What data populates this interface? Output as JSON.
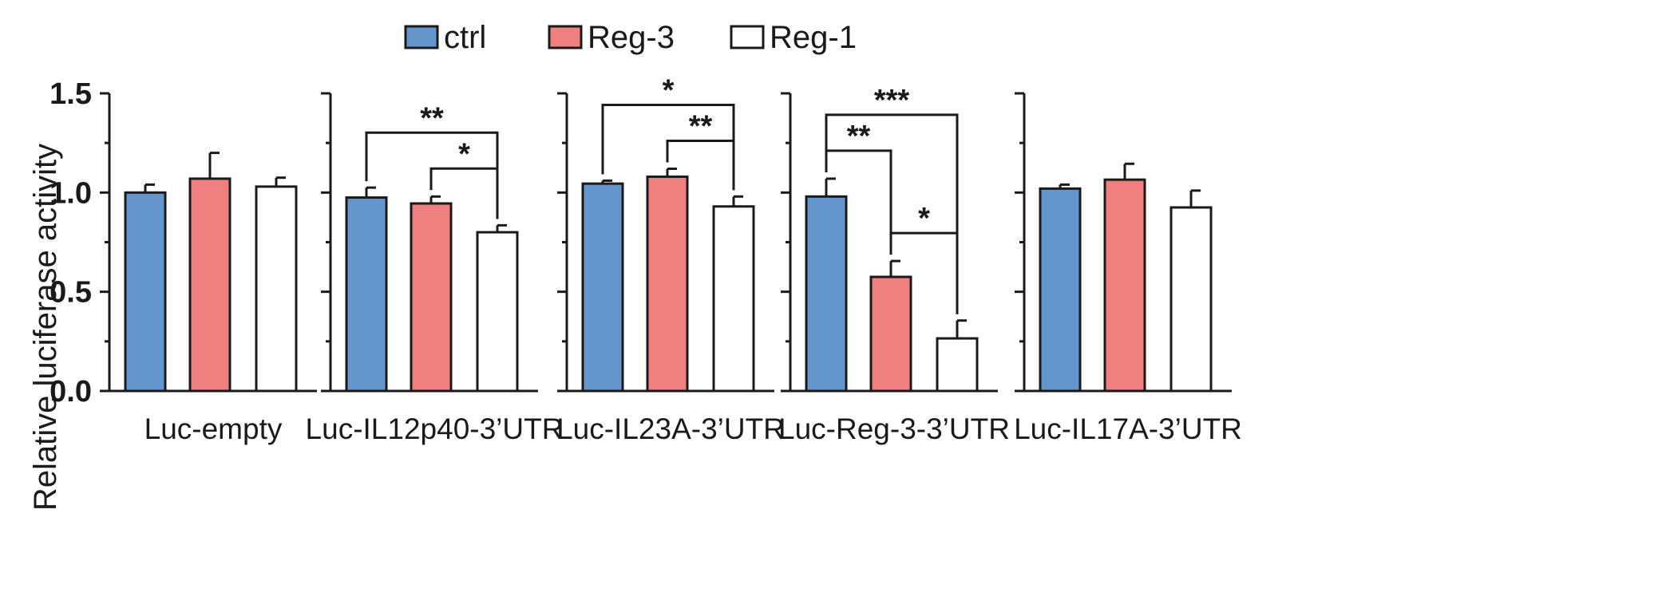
{
  "chart_data": {
    "type": "bar",
    "ylabel": "Relative luciferase activity",
    "ylim": [
      0,
      1.5
    ],
    "yticks": [
      "0.0",
      "0.5",
      "1.0",
      "1.5"
    ],
    "legend_position": "top-center",
    "series": [
      {
        "name": "ctrl",
        "color": "#6495cd"
      },
      {
        "name": "Reg-3",
        "color": "#f08080"
      },
      {
        "name": "Reg-1",
        "color": "#ffffff"
      }
    ],
    "panels": [
      {
        "name": "Luc-empty",
        "values": [
          1.0,
          1.07,
          1.03
        ],
        "errors": [
          0.04,
          0.13,
          0.045
        ],
        "sig": []
      },
      {
        "name": "Luc-IL12p40-3’UTR",
        "values": [
          0.975,
          0.945,
          0.8
        ],
        "errors": [
          0.05,
          0.035,
          0.035
        ],
        "sig": [
          {
            "from": 0,
            "to": 2,
            "label": "**"
          },
          {
            "from": 1,
            "to": 2,
            "label": "*"
          }
        ]
      },
      {
        "name": "Luc-IL23A-3’UTR",
        "values": [
          1.045,
          1.08,
          0.93
        ],
        "errors": [
          0.015,
          0.04,
          0.05
        ],
        "sig": [
          {
            "from": 0,
            "to": 2,
            "label": "*"
          },
          {
            "from": 1,
            "to": 2,
            "label": "**"
          }
        ]
      },
      {
        "name": "Luc-Reg-3-3’UTR",
        "values": [
          0.98,
          0.575,
          0.265
        ],
        "errors": [
          0.09,
          0.08,
          0.09
        ],
        "sig": [
          {
            "from": 0,
            "to": 2,
            "label": "***"
          },
          {
            "from": 0,
            "to": 1,
            "label": "**"
          },
          {
            "from": 1,
            "to": 2,
            "label": "*"
          }
        ]
      },
      {
        "name": "Luc-IL17A-3’UTR",
        "values": [
          1.02,
          1.065,
          0.925
        ],
        "errors": [
          0.02,
          0.08,
          0.085
        ],
        "sig": []
      }
    ]
  }
}
